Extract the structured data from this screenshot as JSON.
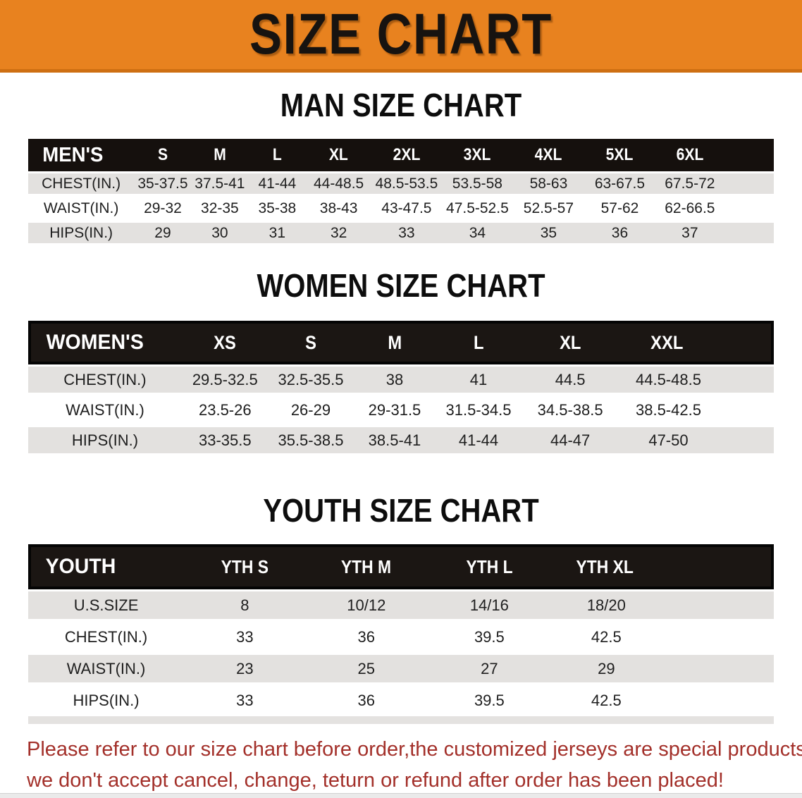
{
  "banner": {
    "title": "SIZE CHART",
    "bg_color": "#E8821F",
    "edge_color": "#CE6F12",
    "text_color": "#171310"
  },
  "sections": [
    {
      "heading": "MAN SIZE CHART",
      "table_title": "MEN'S",
      "header": [
        "MEN'S",
        "S",
        "M",
        "L",
        "XL",
        "2XL",
        "3XL",
        "4XL",
        "5XL",
        "6XL"
      ],
      "rows": [
        [
          "CHEST(IN.)",
          "35-37.5",
          "37.5-41",
          "41-44",
          "44-48.5",
          "48.5-53.5",
          "53.5-58",
          "58-63",
          "63-67.5",
          "67.5-72"
        ],
        [
          "WAIST(IN.)",
          "29-32",
          "32-35",
          "35-38",
          "38-43",
          "43-47.5",
          "47.5-52.5",
          "52.5-57",
          "57-62",
          "62-66.5"
        ],
        [
          "HIPS(IN.)",
          "29",
          "30",
          "31",
          "32",
          "33",
          "34",
          "35",
          "36",
          "37"
        ]
      ]
    },
    {
      "heading": "WOMEN SIZE CHART",
      "table_title": "WOMEN'S",
      "header": [
        "WOMEN'S",
        "XS",
        "S",
        "M",
        "L",
        "XL",
        "XXL"
      ],
      "rows": [
        [
          "CHEST(IN.)",
          "29.5-32.5",
          "32.5-35.5",
          "38",
          "41",
          "44.5",
          "44.5-48.5"
        ],
        [
          "WAIST(IN.)",
          "23.5-26",
          "26-29",
          "29-31.5",
          "31.5-34.5",
          "34.5-38.5",
          "38.5-42.5"
        ],
        [
          "HIPS(IN.)",
          "33-35.5",
          "35.5-38.5",
          "38.5-41",
          "41-44",
          "44-47",
          "47-50"
        ]
      ]
    },
    {
      "heading": "YOUTH SIZE CHART",
      "table_title": "YOUTH",
      "header": [
        "YOUTH",
        "YTH S",
        "YTH M",
        "YTH L",
        "YTH XL"
      ],
      "rows": [
        [
          "U.S.SIZE",
          "8",
          "10/12",
          "14/16",
          "18/20"
        ],
        [
          "CHEST(IN.)",
          "33",
          "36",
          "39.5",
          "42.5"
        ],
        [
          "WAIST(IN.)",
          "23",
          "25",
          "27",
          "29"
        ],
        [
          "HIPS(IN.)",
          "33",
          "36",
          "39.5",
          "42.5"
        ]
      ]
    }
  ],
  "disclaimer": {
    "line1": "Please refer to our size chart before order,the customized jerseys are special products,",
    "line2": "we don't accept cancel, change, teturn or refund after order has been placed!",
    "color": "#A3302A"
  },
  "table_colors": {
    "header_bg": "#15100D",
    "stripe_gray": "#E3E1DF",
    "stripe_white": "#FFFFFF"
  }
}
